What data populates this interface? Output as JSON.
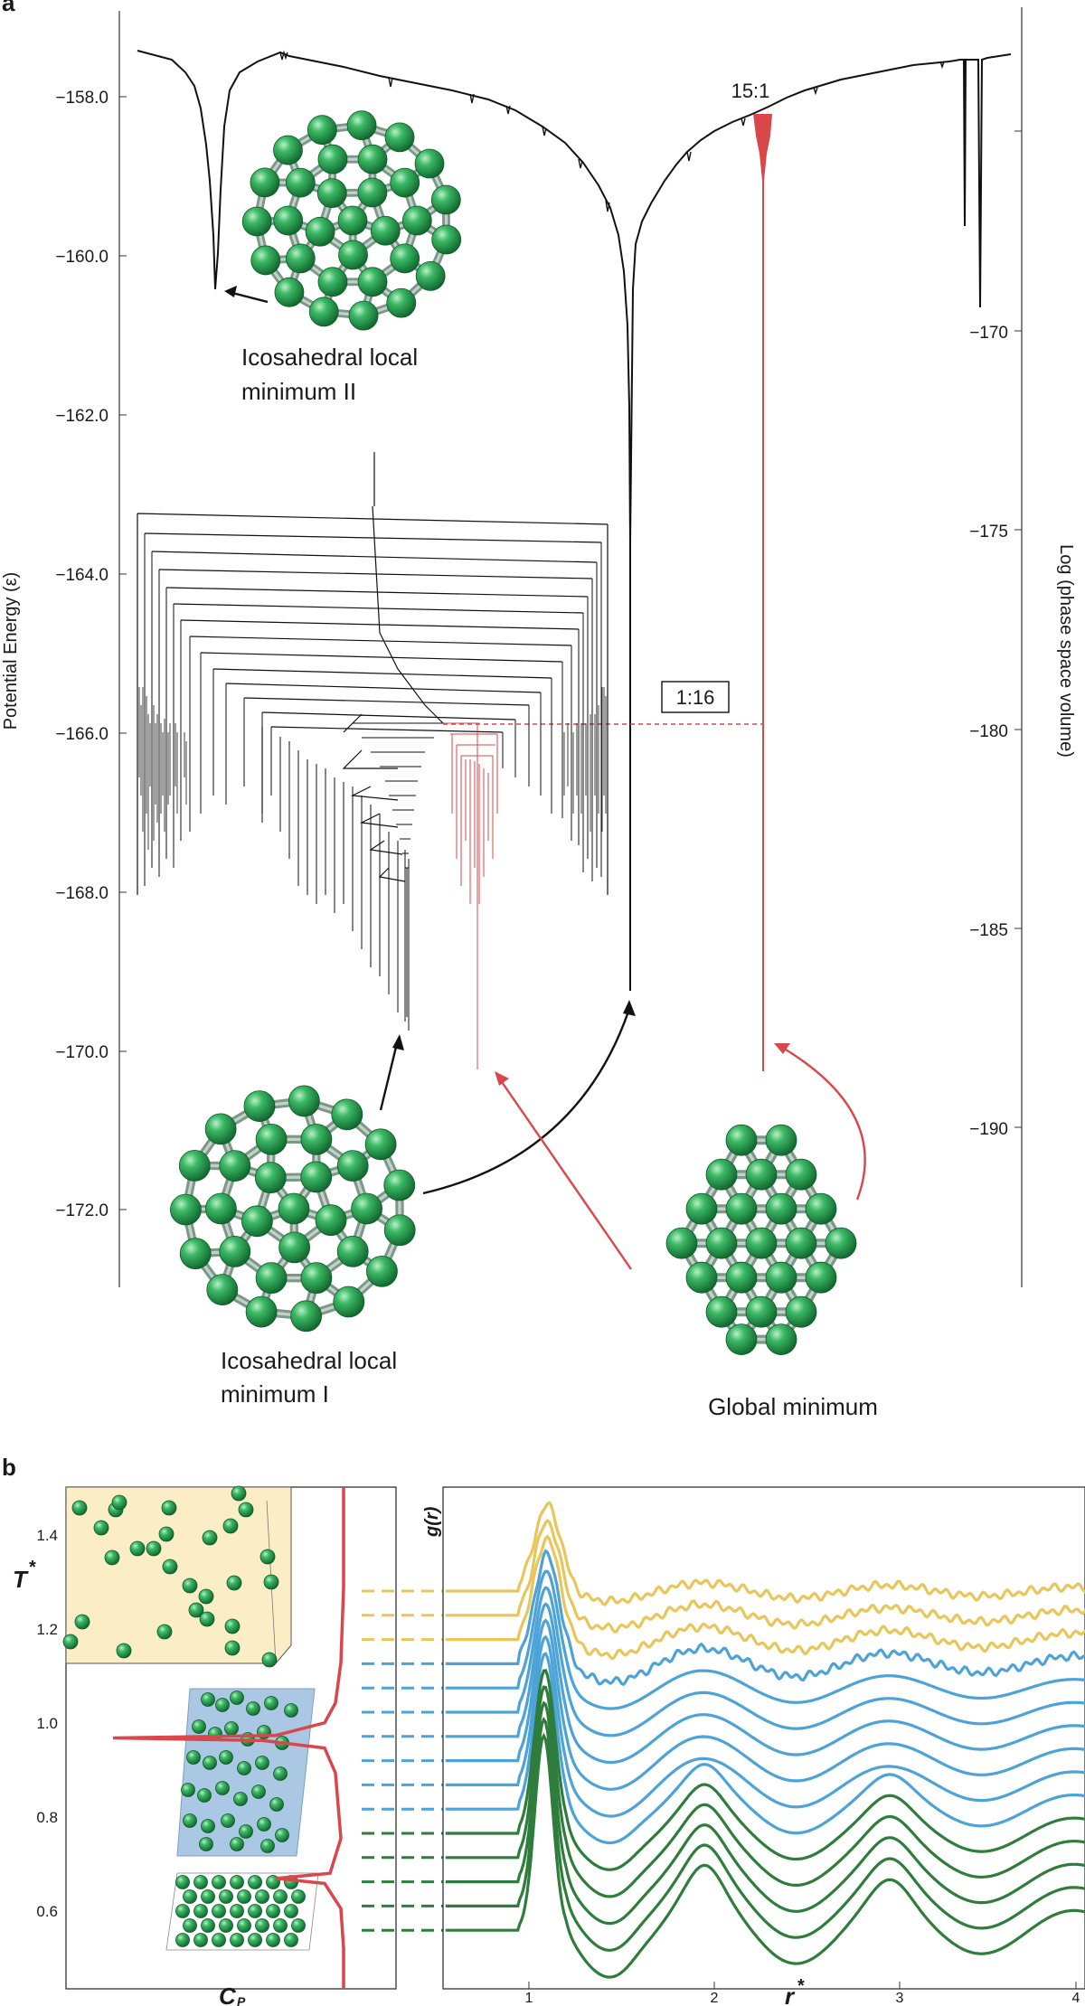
{
  "panel_labels": {
    "a": "a",
    "b": "b"
  },
  "colors": {
    "axis": "#333333",
    "black_curve": "#111111",
    "red": "#d9474b",
    "green_atom": "#2f9e52",
    "bond": "#8fa89a",
    "yellow": "#e8c65a",
    "blue": "#4da3d8",
    "green_line": "#2f7d3c",
    "yellow_box": "#fbeec7",
    "blue_box": "#aac8e4"
  },
  "chart_data": [
    {
      "type": "line",
      "panel": "a",
      "title": "",
      "ylabel_left": "Potential Energy (ε)",
      "ylabel_right": "Log (phase space volume)",
      "yticks_left": [
        "−158.0",
        "−160.0",
        "−162.0",
        "−164.0",
        "−166.0",
        "−168.0",
        "−170.0",
        "−172.0"
      ],
      "yticks_right": [
        "−170",
        "−175",
        "−180",
        "−185",
        "−190"
      ],
      "ylim_left": [
        -173,
        -156.5
      ],
      "ylim_right": [
        -194,
        -161
      ],
      "annotations": {
        "ratio_global": "15:1",
        "ratio_mid": "1:16",
        "label_ico2_line1": "Icosahedral local",
        "label_ico2_line2": "minimum II",
        "label_ico1_line1": "Icosahedral local",
        "label_ico1_line2": "minimum I",
        "label_global": "Global minimum"
      },
      "series": [
        {
          "values": [
            [
              -158.3,
              -157.2
            ],
            [
              -158.0,
              -157.35
            ],
            [
              -157.5,
              -157.6
            ],
            [
              -157.0,
              -157.9
            ],
            [
              -156.5,
              -158.5
            ],
            [
              -156.0,
              -160.0
            ],
            [
              -155.8,
              -162.5
            ],
            [
              -155.7,
              -167.0
            ],
            [
              -155.6,
              -169.0
            ]
          ]
        }
      ]
    },
    {
      "type": "line",
      "panel": "b-left",
      "xlabel": "C",
      "xlabel_sub": "P",
      "ylabel": "T",
      "ylabel_sup": "*",
      "yticks": [
        "0.6",
        "0.8",
        "1.0",
        "1.2",
        "1.4"
      ],
      "ylim": [
        0.5,
        1.5
      ],
      "series": [
        {
          "x": [
            0.05,
            0.05,
            0.06,
            0.08,
            0.12,
            0.3,
            0.9,
            0.35,
            0.12,
            0.08,
            0.06,
            0.1,
            0.3,
            0.12,
            0.06,
            0.05,
            0.05
          ],
          "y": [
            1.5,
            1.3,
            1.15,
            1.07,
            1.03,
            1.005,
            1.0,
            0.995,
            0.98,
            0.93,
            0.8,
            0.73,
            0.72,
            0.71,
            0.66,
            0.58,
            0.5
          ]
        }
      ]
    },
    {
      "type": "line",
      "panel": "b-right",
      "xlabel": "r",
      "xlabel_sup": "*",
      "ylabel": "g(r)",
      "xticks": [
        "1",
        "2",
        "3",
        "4"
      ],
      "xlim": [
        0.55,
        4
      ],
      "groups": [
        {
          "count": 3,
          "color": "yellow"
        },
        {
          "count": 7,
          "color": "blue"
        },
        {
          "count": 5,
          "color": "green"
        }
      ]
    }
  ]
}
